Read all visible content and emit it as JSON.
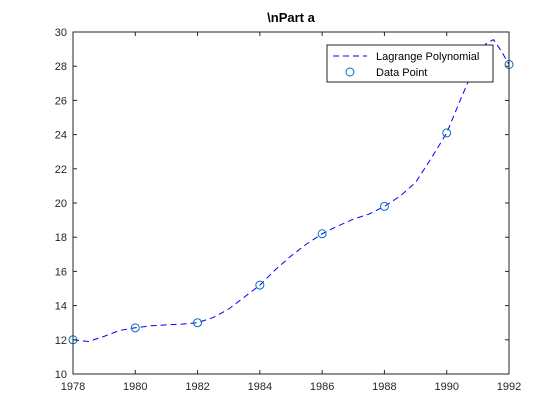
{
  "chart_data": {
    "type": "line",
    "title": "\\nPart a",
    "xlabel": "",
    "ylabel": "",
    "xlim": [
      1978,
      1992
    ],
    "ylim": [
      10,
      30
    ],
    "xticks": [
      1978,
      1980,
      1982,
      1984,
      1986,
      1988,
      1990,
      1992
    ],
    "yticks": [
      10,
      12,
      14,
      16,
      18,
      20,
      22,
      24,
      26,
      28,
      30
    ],
    "grid": false,
    "legend_position": "top-right",
    "series": [
      {
        "name": "Lagrange Polynomial",
        "style": "dashed",
        "color": "#0000ff",
        "x": [
          1978,
          1978.5,
          1979,
          1979.5,
          1980,
          1980.5,
          1981,
          1981.5,
          1982,
          1982.5,
          1983,
          1983.5,
          1984,
          1984.5,
          1985,
          1985.5,
          1986,
          1986.5,
          1987,
          1987.5,
          1988,
          1988.5,
          1989,
          1989.5,
          1990,
          1990.5,
          1991,
          1991.25,
          1991.5,
          1991.75,
          1992
        ],
        "y": [
          12.0,
          11.9,
          12.2,
          12.55,
          12.7,
          12.82,
          12.87,
          12.92,
          13.0,
          13.3,
          13.8,
          14.5,
          15.2,
          16.1,
          16.9,
          17.6,
          18.2,
          18.65,
          19.05,
          19.35,
          19.8,
          20.4,
          21.2,
          22.6,
          24.1,
          26.3,
          28.4,
          29.3,
          29.55,
          28.9,
          28.1
        ]
      },
      {
        "name": "Data Point",
        "style": "markers",
        "marker": "circle",
        "color": "#0072bd",
        "x": [
          1978,
          1980,
          1982,
          1984,
          1986,
          1988,
          1990,
          1992
        ],
        "y": [
          12.0,
          12.7,
          13.0,
          15.2,
          18.2,
          19.8,
          24.1,
          28.1
        ]
      }
    ]
  }
}
